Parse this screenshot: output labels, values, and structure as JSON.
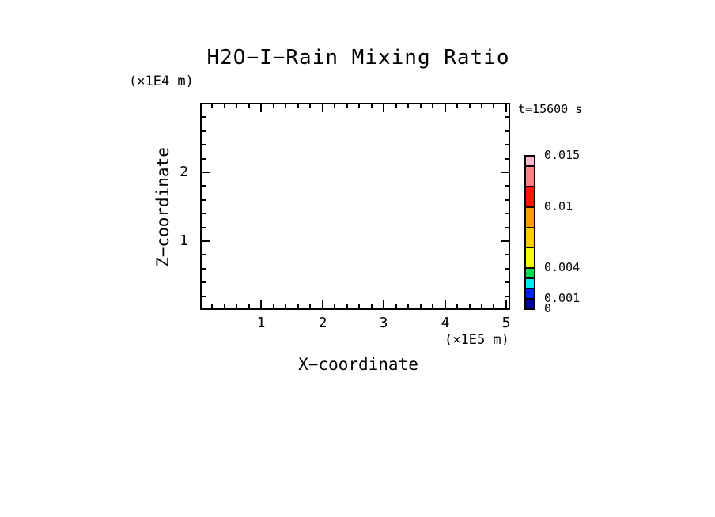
{
  "chart_data": {
    "type": "heatmap",
    "title": "H2O−I−Rain Mixing Ratio",
    "time_label": "t=15600 s",
    "x": {
      "label": "X−coordinate",
      "unit": "(×1E5 m)",
      "min": 0,
      "max": 5.065,
      "major_ticks": [
        1,
        2,
        3,
        4,
        5
      ],
      "minor_step": 0.2
    },
    "y": {
      "label": "Z−coordinate",
      "unit": "(×1E4 m)",
      "min": 0,
      "max": 3.01,
      "major_ticks": [
        1,
        2
      ],
      "minor_step": 0.2
    },
    "colorbar": {
      "min": 0,
      "max": 0.015,
      "levels": [
        0,
        0.001,
        0.002,
        0.003,
        0.004,
        0.006,
        0.008,
        0.01,
        0.012,
        0.014,
        0.015
      ],
      "colors": [
        "#0000A0",
        "#0022EE",
        "#00E6F0",
        "#00DC55",
        "#F4FF00",
        "#FFCC00",
        "#FF9900",
        "#FF1500",
        "#FF8080",
        "#FFB6C6"
      ],
      "tick_labels": [
        "0",
        "0.001",
        "0.004",
        "0.01",
        "0.015"
      ],
      "tick_values": [
        0,
        0.001,
        0.004,
        0.01,
        0.015
      ]
    },
    "values": [],
    "field_note": "plot interior is blank (no contoured values above lowest level)"
  },
  "colors": {
    "foreground": "#000000",
    "background": "#FFFFFF"
  }
}
